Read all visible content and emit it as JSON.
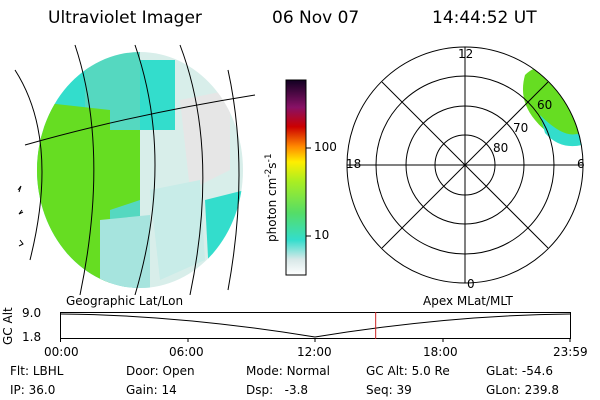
{
  "header": {
    "title": "Ultraviolet Imager",
    "date": "06 Nov 07",
    "time": "14:44:52 UT"
  },
  "colorbar": {
    "unit_label": "photon cm",
    "unit_exp1": "-2",
    "unit_s": "s",
    "unit_exp2": "-1",
    "ticks": [
      "100",
      "10"
    ]
  },
  "polar": {
    "clock_labels": {
      "top": "12",
      "left": "18",
      "right": "6",
      "bottom": "0"
    },
    "lat_labels": [
      "60",
      "70",
      "80"
    ]
  },
  "timeline": {
    "left_title": "Geographic Lat/Lon",
    "right_title": "Apex MLat/MLT",
    "ylabel": "GC Alt",
    "y_ticks": [
      "9.0",
      "1.8"
    ],
    "x_ticks": [
      "00:00",
      "06:00",
      "12:00",
      "18:00",
      "23:59"
    ],
    "current_time_fraction": 0.618
  },
  "status": {
    "row1": [
      {
        "key": "Flt:",
        "value": "LBHL"
      },
      {
        "key": "Door:",
        "value": "Open"
      },
      {
        "key": "Mode:",
        "value": "Normal"
      },
      {
        "key": "GC Alt:",
        "value": "5.0 Re"
      },
      {
        "key": "GLat:",
        "value": "-54.6"
      }
    ],
    "row2": [
      {
        "key": "IP:",
        "value": "36.0"
      },
      {
        "key": "Gain:",
        "value": "14"
      },
      {
        "key": "Dsp:",
        "value": "-3.8"
      },
      {
        "key": "Seq:",
        "value": "39"
      },
      {
        "key": "GLon:",
        "value": "239.8"
      }
    ]
  },
  "colors": {
    "green": "#66dd22",
    "cyan": "#33ddcc",
    "light_cyan": "#c8ece8",
    "grey": "#e4e4e4",
    "marker_red": "#cc2222"
  }
}
